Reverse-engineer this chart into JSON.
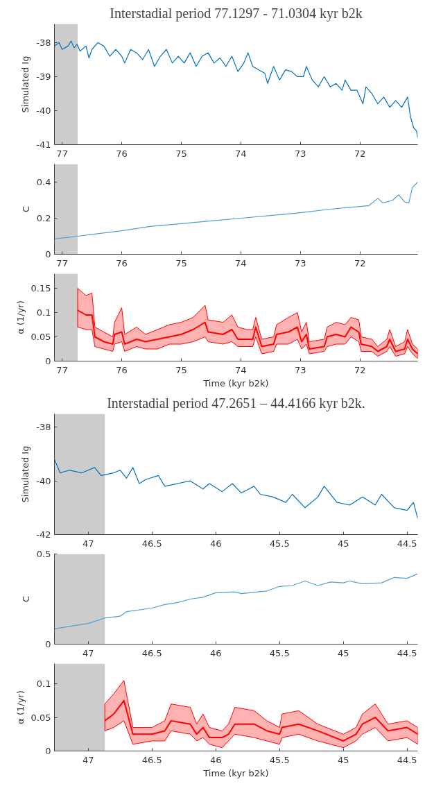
{
  "chart_data": [
    {
      "type": "line",
      "title": "Interstadial period 77.1297 - 71.0304 kyr b2k",
      "ylabel": "Simulated Ig",
      "xlim": [
        77.1297,
        71.0304
      ],
      "ylim": [
        -41,
        -37.45
      ],
      "xticks": [
        77,
        76,
        75,
        74,
        73,
        72
      ],
      "yticks": [
        -41,
        -40,
        -39,
        -38
      ],
      "bands": [
        {
          "axis": "x",
          "from": 77.1297,
          "to": 76.74,
          "color": "#cccccc"
        }
      ],
      "series": [
        {
          "color": "#0072bd",
          "x": [
            77.1297,
            77.05,
            77.0,
            76.9,
            76.85,
            76.8,
            76.75,
            76.7,
            76.6,
            76.55,
            76.5,
            76.4,
            76.3,
            76.2,
            76.1,
            76.0,
            75.95,
            75.85,
            75.75,
            75.65,
            75.55,
            75.45,
            75.35,
            75.25,
            75.15,
            75.05,
            74.95,
            74.85,
            74.75,
            74.65,
            74.55,
            74.45,
            74.35,
            74.25,
            74.15,
            74.05,
            73.95,
            73.88,
            73.8,
            73.7,
            73.6,
            73.55,
            73.45,
            73.35,
            73.25,
            73.15,
            73.05,
            72.95,
            72.9,
            72.8,
            72.7,
            72.6,
            72.5,
            72.4,
            72.3,
            72.25,
            72.15,
            72.05,
            71.95,
            71.9,
            71.8,
            71.7,
            71.6,
            71.5,
            71.4,
            71.3,
            71.2,
            71.15,
            71.1,
            71.05,
            71.0304
          ],
          "values": [
            -38.1,
            -38.0,
            -38.2,
            -38.1,
            -37.95,
            -38.15,
            -38.05,
            -38.25,
            -38.1,
            -38.45,
            -38.2,
            -38.0,
            -38.1,
            -38.4,
            -38.2,
            -38.4,
            -38.6,
            -38.2,
            -38.3,
            -38.5,
            -38.2,
            -38.7,
            -38.4,
            -38.2,
            -38.6,
            -38.4,
            -38.6,
            -38.3,
            -38.7,
            -38.4,
            -38.3,
            -38.6,
            -38.45,
            -38.7,
            -38.4,
            -38.85,
            -38.6,
            -38.3,
            -38.7,
            -38.8,
            -38.9,
            -39.2,
            -38.7,
            -39.1,
            -38.8,
            -38.85,
            -39.0,
            -39.0,
            -38.7,
            -39.1,
            -39.3,
            -39.0,
            -39.3,
            -39.2,
            -39.4,
            -39.1,
            -39.4,
            -39.4,
            -39.8,
            -39.3,
            -39.5,
            -39.8,
            -39.6,
            -39.9,
            -39.7,
            -39.9,
            -39.6,
            -40.2,
            -40.5,
            -40.6,
            -40.8
          ]
        }
      ]
    },
    {
      "type": "line",
      "ylabel": "C",
      "xlim": [
        77.1297,
        71.0304
      ],
      "ylim": [
        0,
        0.5
      ],
      "xticks": [
        77,
        76,
        75,
        74,
        73,
        72
      ],
      "yticks": [
        0,
        0.2,
        0.4
      ],
      "bands": [
        {
          "axis": "x",
          "from": 77.1297,
          "to": 76.74,
          "color": "#cccccc"
        }
      ],
      "series": [
        {
          "color": "#4d9fd6",
          "x": [
            77.1297,
            76.74,
            76.5,
            76.0,
            75.5,
            75.0,
            74.5,
            74.0,
            73.5,
            73.0,
            72.5,
            72.0,
            71.85,
            71.7,
            71.62,
            71.55,
            71.45,
            71.35,
            71.25,
            71.18,
            71.12,
            71.0304
          ],
          "values": [
            0.085,
            0.1,
            0.11,
            0.13,
            0.155,
            0.17,
            0.185,
            0.2,
            0.215,
            0.23,
            0.25,
            0.265,
            0.27,
            0.31,
            0.285,
            0.29,
            0.3,
            0.33,
            0.29,
            0.285,
            0.37,
            0.4
          ]
        }
      ]
    },
    {
      "type": "line",
      "xlabel": "Time (kyr b2k)",
      "ylabel": "α (1/yr)",
      "xlim": [
        77.1297,
        71.0304
      ],
      "ylim": [
        0,
        0.18
      ],
      "xticks": [
        77,
        76,
        75,
        74,
        73,
        72
      ],
      "yticks": [
        0,
        0.05,
        0.1,
        0.15
      ],
      "bands": [
        {
          "axis": "x",
          "from": 77.1297,
          "to": 76.74,
          "color": "#cccccc"
        }
      ],
      "series": [
        {
          "color": "#ff0000",
          "x": [
            76.74,
            76.6,
            76.5,
            76.45,
            76.3,
            76.15,
            76.12,
            76.0,
            75.95,
            75.75,
            75.6,
            75.4,
            75.2,
            75.0,
            74.8,
            74.6,
            74.55,
            74.3,
            74.15,
            74.05,
            73.9,
            73.8,
            73.75,
            73.65,
            73.45,
            73.4,
            73.2,
            73.05,
            72.98,
            72.9,
            72.85,
            72.6,
            72.55,
            72.4,
            72.25,
            72.15,
            72.02,
            71.98,
            71.8,
            71.7,
            71.55,
            71.5,
            71.4,
            71.25,
            71.2,
            71.12,
            71.0304
          ],
          "values": [
            0.105,
            0.095,
            0.095,
            0.05,
            0.04,
            0.035,
            0.055,
            0.06,
            0.035,
            0.045,
            0.04,
            0.045,
            0.05,
            0.055,
            0.065,
            0.08,
            0.06,
            0.055,
            0.065,
            0.045,
            0.045,
            0.045,
            0.07,
            0.03,
            0.035,
            0.055,
            0.06,
            0.07,
            0.04,
            0.055,
            0.025,
            0.03,
            0.05,
            0.055,
            0.05,
            0.07,
            0.06,
            0.035,
            0.03,
            0.02,
            0.03,
            0.045,
            0.02,
            0.025,
            0.045,
            0.025,
            0.015
          ],
          "lower": [
            0.07,
            0.065,
            0.065,
            0.03,
            0.025,
            0.02,
            0.035,
            0.04,
            0.02,
            0.03,
            0.025,
            0.025,
            0.035,
            0.035,
            0.04,
            0.05,
            0.04,
            0.035,
            0.04,
            0.03,
            0.03,
            0.03,
            0.05,
            0.015,
            0.02,
            0.035,
            0.035,
            0.045,
            0.025,
            0.035,
            0.015,
            0.02,
            0.03,
            0.035,
            0.035,
            0.05,
            0.04,
            0.02,
            0.02,
            0.01,
            0.02,
            0.03,
            0.01,
            0.015,
            0.03,
            0.015,
            0.005
          ],
          "upper": [
            0.15,
            0.135,
            0.14,
            0.07,
            0.06,
            0.05,
            0.08,
            0.11,
            0.055,
            0.07,
            0.055,
            0.065,
            0.075,
            0.08,
            0.09,
            0.115,
            0.085,
            0.08,
            0.095,
            0.07,
            0.065,
            0.065,
            0.09,
            0.045,
            0.05,
            0.075,
            0.09,
            0.1,
            0.06,
            0.08,
            0.04,
            0.045,
            0.07,
            0.08,
            0.075,
            0.09,
            0.085,
            0.05,
            0.045,
            0.03,
            0.045,
            0.065,
            0.03,
            0.04,
            0.065,
            0.035,
            0.025
          ]
        }
      ]
    },
    {
      "type": "line",
      "title": "Interstadial period 47.2651 – 44.4166 kyr b2k.",
      "ylabel": "Simulated Ig",
      "xlim": [
        47.2651,
        44.4166
      ],
      "ylim": [
        -42,
        -37.5
      ],
      "xticks": [
        47,
        46.5,
        46,
        45.5,
        45,
        44.5
      ],
      "yticks": [
        -42,
        -40,
        -38
      ],
      "bands": [
        {
          "axis": "x",
          "from": 47.2651,
          "to": 46.87,
          "color": "#cccccc"
        }
      ],
      "series": [
        {
          "color": "#0072bd",
          "x": [
            47.2651,
            47.22,
            47.15,
            47.05,
            46.95,
            46.9,
            46.8,
            46.75,
            46.7,
            46.65,
            46.6,
            46.55,
            46.45,
            46.4,
            46.3,
            46.2,
            46.1,
            46.05,
            45.95,
            45.87,
            45.8,
            45.7,
            45.65,
            45.55,
            45.45,
            45.4,
            45.3,
            45.2,
            45.15,
            45.05,
            44.95,
            44.85,
            44.75,
            44.7,
            44.6,
            44.5,
            44.45,
            44.4166
          ],
          "values": [
            -39.2,
            -39.7,
            -39.6,
            -39.7,
            -39.5,
            -39.8,
            -39.7,
            -39.6,
            -39.9,
            -39.5,
            -40.1,
            -39.95,
            -39.8,
            -40.2,
            -40.1,
            -40.0,
            -40.3,
            -40.1,
            -40.4,
            -40.1,
            -40.45,
            -40.2,
            -40.5,
            -40.6,
            -40.8,
            -40.5,
            -41.0,
            -40.6,
            -40.2,
            -40.8,
            -40.9,
            -40.6,
            -40.9,
            -40.5,
            -41.0,
            -41.1,
            -40.8,
            -41.4
          ]
        }
      ]
    },
    {
      "type": "line",
      "ylabel": "C",
      "xlim": [
        47.2651,
        44.4166
      ],
      "ylim": [
        0,
        0.5
      ],
      "xticks": [
        47,
        46.5,
        46,
        45.5,
        45,
        44.5
      ],
      "yticks": [
        0,
        0.5
      ],
      "bands": [
        {
          "axis": "x",
          "from": 47.2651,
          "to": 46.87,
          "color": "#cccccc"
        }
      ],
      "series": [
        {
          "color": "#4d9fd6",
          "x": [
            47.2651,
            47.0,
            46.87,
            46.75,
            46.7,
            46.5,
            46.4,
            46.3,
            46.2,
            46.1,
            46.0,
            45.85,
            45.8,
            45.6,
            45.5,
            45.4,
            45.3,
            45.2,
            45.1,
            45.0,
            44.95,
            44.85,
            44.7,
            44.6,
            44.5,
            44.4166
          ],
          "values": [
            0.085,
            0.115,
            0.145,
            0.155,
            0.18,
            0.2,
            0.22,
            0.23,
            0.25,
            0.26,
            0.285,
            0.29,
            0.28,
            0.295,
            0.32,
            0.325,
            0.35,
            0.325,
            0.345,
            0.34,
            0.35,
            0.335,
            0.34,
            0.37,
            0.365,
            0.39
          ]
        }
      ]
    },
    {
      "type": "line",
      "xlabel": "Time (kyr b2k)",
      "ylabel": "α (1/yr)",
      "xlim": [
        47.2651,
        44.4166
      ],
      "ylim": [
        0,
        0.13
      ],
      "xticks": [
        47,
        46.5,
        46,
        45.5,
        45,
        44.5
      ],
      "yticks": [
        0,
        0.05,
        0.1
      ],
      "bands": [
        {
          "axis": "x",
          "from": 47.2651,
          "to": 46.87,
          "color": "#cccccc"
        }
      ],
      "series": [
        {
          "color": "#ff0000",
          "x": [
            46.87,
            46.8,
            46.72,
            46.65,
            46.5,
            46.4,
            46.35,
            46.2,
            46.15,
            46.1,
            46.05,
            45.95,
            45.9,
            45.85,
            45.7,
            45.6,
            45.5,
            45.48,
            45.35,
            45.2,
            45.0,
            44.9,
            44.85,
            44.75,
            44.65,
            44.5,
            44.4166
          ],
          "values": [
            0.045,
            0.055,
            0.075,
            0.025,
            0.025,
            0.03,
            0.045,
            0.04,
            0.025,
            0.035,
            0.02,
            0.02,
            0.025,
            0.04,
            0.04,
            0.03,
            0.025,
            0.035,
            0.04,
            0.03,
            0.015,
            0.025,
            0.04,
            0.05,
            0.03,
            0.035,
            0.025
          ],
          "lower": [
            0.03,
            0.035,
            0.045,
            0.01,
            0.015,
            0.015,
            0.03,
            0.025,
            0.015,
            0.02,
            0.01,
            0.005,
            0.015,
            0.025,
            0.02,
            0.015,
            0.01,
            0.02,
            0.025,
            0.015,
            0.005,
            0.015,
            0.025,
            0.035,
            0.015,
            0.02,
            0.01
          ],
          "upper": [
            0.07,
            0.085,
            0.105,
            0.035,
            0.035,
            0.045,
            0.07,
            0.065,
            0.04,
            0.055,
            0.035,
            0.03,
            0.04,
            0.065,
            0.06,
            0.045,
            0.035,
            0.055,
            0.06,
            0.04,
            0.025,
            0.035,
            0.055,
            0.07,
            0.04,
            0.045,
            0.035
          ]
        }
      ]
    }
  ]
}
